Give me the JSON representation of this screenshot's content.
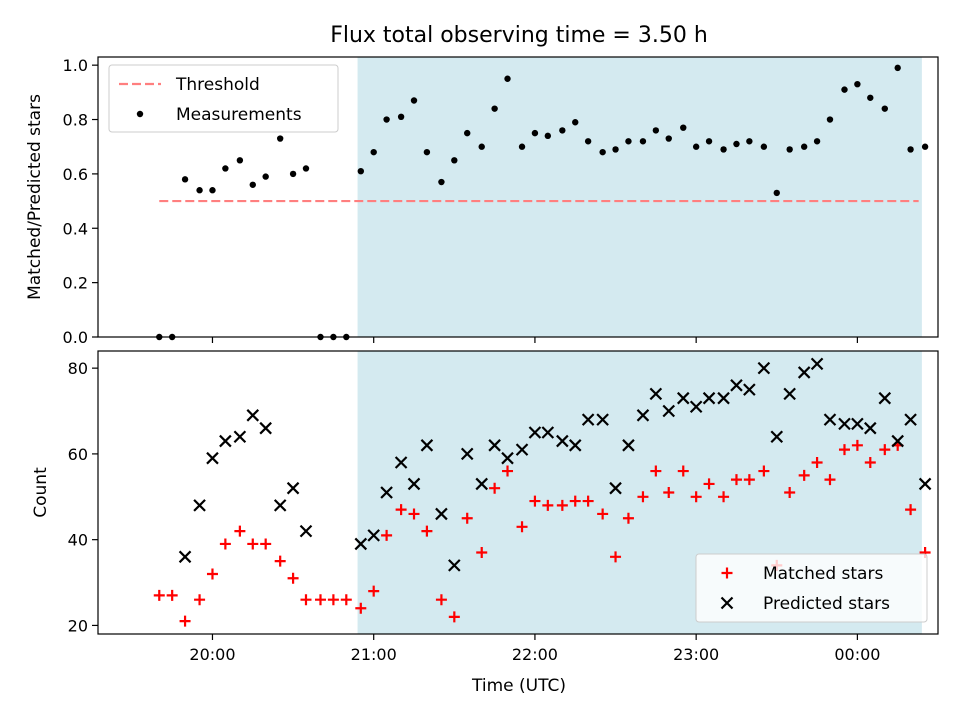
{
  "figure": {
    "title": "Flux total observing time = 3.50 h",
    "shared_xlabel": "Time (UTC)",
    "x_tick_labels": [
      "20:00",
      "21:00",
      "22:00",
      "23:00",
      "00:00"
    ]
  },
  "chart_data": [
    {
      "type": "scatter",
      "title": "Flux total observing time = 3.50 h",
      "xlabel": "",
      "ylabel": "Matched/Predicted stars",
      "x_unit": "hours UTC (24 = 00:00 next day)",
      "xlim": [
        19.29,
        24.5
      ],
      "ylim": [
        0,
        1.03
      ],
      "yticks": [
        0.0,
        0.2,
        0.4,
        0.6,
        0.8,
        1.0
      ],
      "ytick_labels": [
        "0.0",
        "0.2",
        "0.4",
        "0.6",
        "0.8",
        "1.0"
      ],
      "x_tick_values": [
        20,
        21,
        22,
        23,
        24
      ],
      "highlight_span": {
        "x": [
          20.9,
          24.4
        ],
        "color": "#d4eaf0"
      },
      "legend": {
        "placement": "top-left",
        "entries": [
          "Threshold",
          "Measurements"
        ]
      },
      "threshold": {
        "name": "Threshold",
        "y": 0.5,
        "x": [
          19.67,
          24.38
        ],
        "color": "#ff7f7f",
        "style": "dashed"
      },
      "series": [
        {
          "name": "Measurements",
          "marker": "dot",
          "color": "#000000",
          "x": [
            19.67,
            19.75,
            19.83,
            19.92,
            20.0,
            20.08,
            20.17,
            20.25,
            20.33,
            20.42,
            20.5,
            20.58,
            20.67,
            20.75,
            20.83,
            20.92,
            21.0,
            21.08,
            21.17,
            21.25,
            21.33,
            21.42,
            21.5,
            21.58,
            21.67,
            21.75,
            21.83,
            21.92,
            22.0,
            22.08,
            22.17,
            22.25,
            22.33,
            22.42,
            22.5,
            22.58,
            22.67,
            22.75,
            22.83,
            22.92,
            23.0,
            23.08,
            23.17,
            23.25,
            23.33,
            23.42,
            23.5,
            23.58,
            23.67,
            23.75,
            23.83,
            23.92,
            24.0,
            24.08,
            24.17,
            24.25,
            24.33,
            24.42
          ],
          "y": [
            0.0,
            0.0,
            0.58,
            0.54,
            0.54,
            0.62,
            0.65,
            0.56,
            0.59,
            0.73,
            0.6,
            0.62,
            0.0,
            0.0,
            0.0,
            0.61,
            0.68,
            0.8,
            0.81,
            0.87,
            0.68,
            0.57,
            0.65,
            0.75,
            0.7,
            0.84,
            0.95,
            0.7,
            0.75,
            0.74,
            0.76,
            0.79,
            0.72,
            0.68,
            0.69,
            0.72,
            0.72,
            0.76,
            0.73,
            0.77,
            0.7,
            0.72,
            0.69,
            0.71,
            0.72,
            0.7,
            0.53,
            0.69,
            0.7,
            0.72,
            0.8,
            0.91,
            0.93,
            0.88,
            0.84,
            0.99,
            0.69,
            0.7
          ]
        }
      ]
    },
    {
      "type": "scatter",
      "title": "",
      "xlabel": "Time (UTC)",
      "ylabel": "Count",
      "x_unit": "hours UTC (24 = 00:00 next day)",
      "xlim": [
        19.29,
        24.5
      ],
      "ylim": [
        18,
        84
      ],
      "yticks": [
        20,
        40,
        60,
        80
      ],
      "ytick_labels": [
        "20",
        "40",
        "60",
        "80"
      ],
      "x_tick_values": [
        20,
        21,
        22,
        23,
        24
      ],
      "highlight_span": {
        "x": [
          20.9,
          24.4
        ],
        "color": "#d4eaf0"
      },
      "legend": {
        "placement": "bottom-right",
        "entries": [
          "Matched stars",
          "Predicted stars"
        ]
      },
      "series": [
        {
          "name": "Matched stars",
          "marker": "plus",
          "color": "#ff0000",
          "x": [
            19.67,
            19.75,
            19.83,
            19.92,
            20.0,
            20.08,
            20.17,
            20.25,
            20.33,
            20.42,
            20.5,
            20.58,
            20.67,
            20.75,
            20.83,
            20.92,
            21.0,
            21.08,
            21.17,
            21.25,
            21.33,
            21.42,
            21.5,
            21.58,
            21.67,
            21.75,
            21.83,
            21.92,
            22.0,
            22.08,
            22.17,
            22.25,
            22.33,
            22.42,
            22.5,
            22.58,
            22.67,
            22.75,
            22.83,
            22.92,
            23.0,
            23.08,
            23.17,
            23.25,
            23.33,
            23.42,
            23.5,
            23.58,
            23.67,
            23.75,
            23.83,
            23.92,
            24.0,
            24.08,
            24.17,
            24.25,
            24.33,
            24.42
          ],
          "y": [
            27,
            27,
            21,
            26,
            32,
            39,
            42,
            39,
            39,
            35,
            31,
            26,
            26,
            26,
            26,
            24,
            28,
            41,
            47,
            46,
            42,
            26,
            22,
            45,
            37,
            52,
            56,
            43,
            49,
            48,
            48,
            49,
            49,
            46,
            36,
            45,
            50,
            56,
            51,
            56,
            50,
            53,
            50,
            54,
            54,
            56,
            34,
            51,
            55,
            58,
            54,
            61,
            62,
            58,
            61,
            62,
            47,
            37
          ]
        },
        {
          "name": "Predicted stars",
          "marker": "x",
          "color": "#000000",
          "x": [
            19.83,
            19.92,
            20.0,
            20.08,
            20.17,
            20.25,
            20.33,
            20.42,
            20.5,
            20.58,
            20.92,
            21.0,
            21.08,
            21.17,
            21.25,
            21.33,
            21.42,
            21.5,
            21.58,
            21.67,
            21.75,
            21.83,
            21.92,
            22.0,
            22.08,
            22.17,
            22.25,
            22.33,
            22.42,
            22.5,
            22.58,
            22.67,
            22.75,
            22.83,
            22.92,
            23.0,
            23.08,
            23.17,
            23.25,
            23.33,
            23.42,
            23.5,
            23.58,
            23.67,
            23.75,
            23.83,
            23.92,
            24.0,
            24.08,
            24.17,
            24.25,
            24.33,
            24.42
          ],
          "y": [
            36,
            48,
            59,
            63,
            64,
            69,
            66,
            48,
            52,
            42,
            39,
            41,
            51,
            58,
            53,
            62,
            46,
            34,
            60,
            53,
            62,
            59,
            61,
            65,
            65,
            63,
            62,
            68,
            68,
            52,
            62,
            69,
            74,
            70,
            73,
            71,
            73,
            73,
            76,
            75,
            80,
            64,
            74,
            79,
            81,
            68,
            67,
            67,
            66,
            73,
            63,
            68,
            53
          ]
        }
      ]
    }
  ]
}
